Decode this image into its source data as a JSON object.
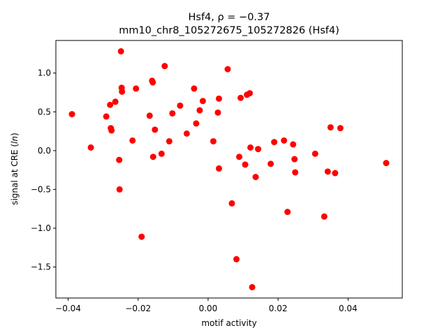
{
  "chart_data": {
    "type": "scatter",
    "title_line1": "Hsf4, ρ = −0.37",
    "title_line2": "mm10_chr8_105272675_105272826 (Hsf4)",
    "xlabel": "motif activity",
    "ylabel": "signal at CRE (ln)",
    "xlim": [
      -0.0435,
      0.0555
    ],
    "ylim": [
      -1.9,
      1.42
    ],
    "xticks": [
      -0.04,
      -0.02,
      0.0,
      0.02,
      0.04
    ],
    "xtick_labels": [
      "−0.04",
      "−0.02",
      "0.00",
      "0.02",
      "0.04"
    ],
    "yticks": [
      -1.5,
      -1.0,
      -0.5,
      0.0,
      0.5,
      1.0
    ],
    "ytick_labels": [
      "−1.5",
      "−1.0",
      "−0.5",
      "0.0",
      "0.5",
      "1.0"
    ],
    "grid": false,
    "marker_color": "#ff0000",
    "points": [
      {
        "x": -0.0389,
        "y": 0.47
      },
      {
        "x": -0.0335,
        "y": 0.04
      },
      {
        "x": -0.0291,
        "y": 0.44
      },
      {
        "x": -0.028,
        "y": 0.59
      },
      {
        "x": -0.0278,
        "y": 0.29
      },
      {
        "x": -0.0276,
        "y": 0.26
      },
      {
        "x": -0.0265,
        "y": 0.63
      },
      {
        "x": -0.0254,
        "y": -0.12
      },
      {
        "x": -0.0253,
        "y": -0.5
      },
      {
        "x": -0.0249,
        "y": 1.28
      },
      {
        "x": -0.0247,
        "y": 0.81
      },
      {
        "x": -0.0246,
        "y": 0.76
      },
      {
        "x": -0.0216,
        "y": 0.13
      },
      {
        "x": -0.0206,
        "y": 0.8
      },
      {
        "x": -0.019,
        "y": -1.11
      },
      {
        "x": -0.0167,
        "y": 0.45
      },
      {
        "x": -0.016,
        "y": 0.9
      },
      {
        "x": -0.0158,
        "y": 0.88
      },
      {
        "x": -0.0157,
        "y": -0.08
      },
      {
        "x": -0.0152,
        "y": 0.27
      },
      {
        "x": -0.0133,
        "y": -0.04
      },
      {
        "x": -0.0124,
        "y": 1.09
      },
      {
        "x": -0.0111,
        "y": 0.12
      },
      {
        "x": -0.0102,
        "y": 0.48
      },
      {
        "x": -0.008,
        "y": 0.58
      },
      {
        "x": -0.0061,
        "y": 0.22
      },
      {
        "x": -0.004,
        "y": 0.8
      },
      {
        "x": -0.0034,
        "y": 0.35
      },
      {
        "x": -0.0024,
        "y": 0.52
      },
      {
        "x": -0.0015,
        "y": 0.64
      },
      {
        "x": 0.0015,
        "y": 0.12
      },
      {
        "x": 0.0028,
        "y": 0.49
      },
      {
        "x": 0.0031,
        "y": 0.67
      },
      {
        "x": 0.0031,
        "y": -0.23
      },
      {
        "x": 0.0056,
        "y": 1.05
      },
      {
        "x": 0.0068,
        "y": -0.68
      },
      {
        "x": 0.0081,
        "y": -1.4
      },
      {
        "x": 0.0089,
        "y": -0.08
      },
      {
        "x": 0.0093,
        "y": 0.68
      },
      {
        "x": 0.0106,
        "y": -0.18
      },
      {
        "x": 0.0111,
        "y": 0.72
      },
      {
        "x": 0.0119,
        "y": 0.74
      },
      {
        "x": 0.0121,
        "y": 0.04
      },
      {
        "x": 0.0126,
        "y": -1.76
      },
      {
        "x": 0.0136,
        "y": -0.34
      },
      {
        "x": 0.0143,
        "y": 0.02
      },
      {
        "x": 0.0179,
        "y": -0.17
      },
      {
        "x": 0.0189,
        "y": 0.11
      },
      {
        "x": 0.0217,
        "y": 0.13
      },
      {
        "x": 0.0227,
        "y": -0.79
      },
      {
        "x": 0.0243,
        "y": 0.08
      },
      {
        "x": 0.0247,
        "y": -0.11
      },
      {
        "x": 0.0249,
        "y": -0.28
      },
      {
        "x": 0.0306,
        "y": -0.04
      },
      {
        "x": 0.0332,
        "y": -0.85
      },
      {
        "x": 0.0342,
        "y": -0.27
      },
      {
        "x": 0.035,
        "y": 0.3
      },
      {
        "x": 0.0363,
        "y": -0.29
      },
      {
        "x": 0.0378,
        "y": 0.29
      },
      {
        "x": 0.0509,
        "y": -0.16
      }
    ]
  }
}
